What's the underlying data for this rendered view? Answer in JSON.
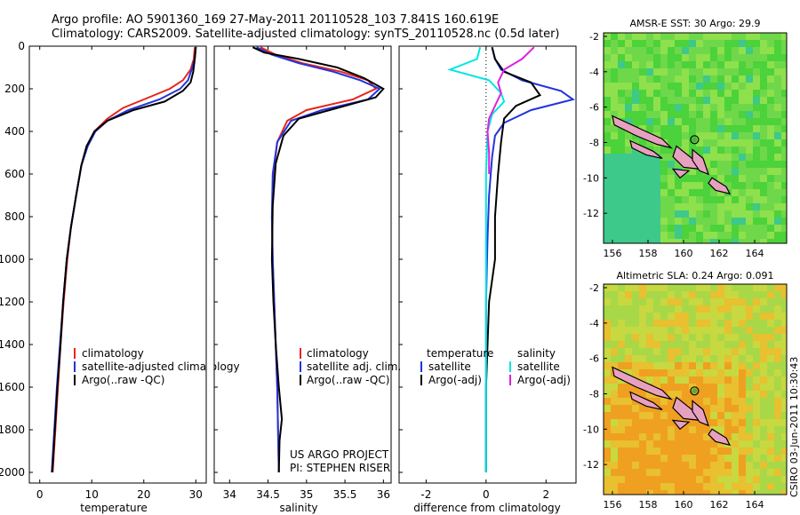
{
  "header": {
    "line1": "Argo profile: AO 5901360_169 27-May-2011 20110528_103 7.841S 160.619E",
    "line2": "Climatology: CARS2009. Satellite-adjusted climatology: synTS_20110528.nc (0.5d later)"
  },
  "footer_credit": "CSIRO 03-Jun-2011 10:30:43",
  "project_text": [
    "US ARGO PROJECT",
    "PI: STEPHEN RISER"
  ],
  "colors": {
    "climatology": "#e8241a",
    "satellite": "#2233dd",
    "argo": "#000000",
    "satellite_sal": "#00e5e5",
    "argo_sal": "#e020e0"
  },
  "chart_data": [
    {
      "type": "line",
      "id": "temperature",
      "xlabel": "temperature",
      "ylabel": "",
      "xlim": [
        -2,
        32
      ],
      "ylim": [
        2050,
        0
      ],
      "xticks": [
        0,
        10,
        20,
        30
      ],
      "yticks": [
        0,
        200,
        400,
        600,
        800,
        1000,
        1200,
        1400,
        1600,
        1800,
        2000
      ],
      "legend": [
        "climatology",
        "satellite-adjusted climatology",
        "Argo(..raw -QC)"
      ],
      "legend_position": "lower-right",
      "series": [
        {
          "name": "climatology",
          "color": "#e8241a",
          "points": [
            [
              29.8,
              5
            ],
            [
              29.6,
              60
            ],
            [
              29.0,
              110
            ],
            [
              27.5,
              160
            ],
            [
              25,
              200
            ],
            [
              20,
              250
            ],
            [
              16,
              290
            ],
            [
              13,
              340
            ],
            [
              10.5,
              400
            ],
            [
              9,
              470
            ],
            [
              8,
              560
            ],
            [
              7,
              700
            ],
            [
              6,
              850
            ],
            [
              5.3,
              1000
            ],
            [
              4.6,
              1200
            ],
            [
              4,
              1400
            ],
            [
              3.5,
              1600
            ],
            [
              3,
              1800
            ],
            [
              2.5,
              2000
            ]
          ]
        },
        {
          "name": "satellite-adjusted climatology",
          "color": "#2233dd",
          "points": [
            [
              30,
              5
            ],
            [
              29.8,
              60
            ],
            [
              29.2,
              110
            ],
            [
              28.5,
              160
            ],
            [
              27,
              200
            ],
            [
              23,
              250
            ],
            [
              17,
              300
            ],
            [
              13,
              350
            ],
            [
              10.7,
              400
            ],
            [
              9.2,
              470
            ],
            [
              8,
              560
            ],
            [
              7,
              700
            ],
            [
              6,
              850
            ],
            [
              5.2,
              1000
            ],
            [
              4.5,
              1200
            ],
            [
              3.9,
              1400
            ],
            [
              3.3,
              1600
            ],
            [
              2.8,
              1800
            ],
            [
              2.3,
              2000
            ]
          ]
        },
        {
          "name": "Argo(..raw -QC)",
          "color": "#000000",
          "points": [
            [
              30,
              5
            ],
            [
              29.8,
              60
            ],
            [
              29.5,
              120
            ],
            [
              29,
              170
            ],
            [
              27.5,
              210
            ],
            [
              24,
              260
            ],
            [
              18,
              300
            ],
            [
              13,
              350
            ],
            [
              10.5,
              400
            ],
            [
              9,
              470
            ],
            [
              8,
              560
            ],
            [
              7,
              700
            ],
            [
              6,
              850
            ],
            [
              5.2,
              1000
            ],
            [
              4.5,
              1200
            ],
            [
              4,
              1400
            ],
            [
              3.4,
              1600
            ],
            [
              2.9,
              1800
            ],
            [
              2.4,
              2000
            ]
          ]
        }
      ]
    },
    {
      "type": "line",
      "id": "salinity",
      "xlabel": "salinity",
      "xlim": [
        33.8,
        36.1
      ],
      "ylim": [
        2050,
        0
      ],
      "xticks": [
        34,
        34.5,
        35,
        35.5,
        36
      ],
      "legend": [
        "climatology",
        "satellite adj. clim.",
        "Argo(..raw -QC)"
      ],
      "legend_position": "lower-right",
      "series": [
        {
          "name": "climatology",
          "color": "#e8241a",
          "points": [
            [
              34.4,
              5
            ],
            [
              34.6,
              40
            ],
            [
              34.95,
              80
            ],
            [
              35.45,
              120
            ],
            [
              35.8,
              160
            ],
            [
              35.9,
              200
            ],
            [
              35.6,
              250
            ],
            [
              35.0,
              300
            ],
            [
              34.75,
              350
            ],
            [
              34.62,
              450
            ],
            [
              34.57,
              600
            ],
            [
              34.55,
              800
            ],
            [
              34.56,
              1000
            ],
            [
              34.58,
              1200
            ],
            [
              34.6,
              1400
            ],
            [
              34.62,
              1600
            ],
            [
              34.63,
              1800
            ],
            [
              34.64,
              2000
            ]
          ]
        },
        {
          "name": "satellite adj. clim.",
          "color": "#2233dd",
          "points": [
            [
              34.35,
              5
            ],
            [
              34.55,
              40
            ],
            [
              34.9,
              80
            ],
            [
              35.35,
              120
            ],
            [
              35.7,
              160
            ],
            [
              35.95,
              200
            ],
            [
              35.8,
              250
            ],
            [
              35.2,
              300
            ],
            [
              34.8,
              350
            ],
            [
              34.62,
              450
            ],
            [
              34.56,
              600
            ],
            [
              34.55,
              800
            ],
            [
              34.56,
              1000
            ],
            [
              34.58,
              1200
            ],
            [
              34.6,
              1400
            ],
            [
              34.62,
              1600
            ],
            [
              34.63,
              1800
            ],
            [
              34.64,
              2000
            ]
          ]
        },
        {
          "name": "Argo(..raw -QC)",
          "color": "#000000",
          "points": [
            [
              34.3,
              5
            ],
            [
              34.45,
              30
            ],
            [
              34.9,
              60
            ],
            [
              35.4,
              100
            ],
            [
              35.75,
              150
            ],
            [
              36.0,
              200
            ],
            [
              35.9,
              240
            ],
            [
              35.4,
              290
            ],
            [
              34.9,
              340
            ],
            [
              34.7,
              420
            ],
            [
              34.6,
              550
            ],
            [
              34.56,
              750
            ],
            [
              34.55,
              1000
            ],
            [
              34.57,
              1200
            ],
            [
              34.6,
              1400
            ],
            [
              34.64,
              1600
            ],
            [
              34.68,
              1750
            ],
            [
              34.65,
              1850
            ],
            [
              34.64,
              2000
            ]
          ]
        }
      ]
    },
    {
      "type": "line",
      "id": "difference",
      "xlabel": "difference from climatology",
      "xlim": [
        -2.9,
        3.0
      ],
      "ylim": [
        2050,
        0
      ],
      "xticks": [
        -2,
        0,
        2
      ],
      "legend": [
        "temperature",
        "satellite",
        "Argo(-adj)",
        "salinity",
        "satellite",
        "Argo(-adj)"
      ],
      "legend_position": "lower",
      "series": [
        {
          "name": "temperature satellite",
          "color": "#2233dd",
          "points": [
            [
              0.2,
              5
            ],
            [
              0.3,
              60
            ],
            [
              0.5,
              110
            ],
            [
              1.2,
              160
            ],
            [
              2.5,
              210
            ],
            [
              2.9,
              250
            ],
            [
              1.5,
              300
            ],
            [
              0.6,
              360
            ],
            [
              0.3,
              420
            ],
            [
              0.2,
              520
            ],
            [
              0.1,
              700
            ],
            [
              0.05,
              900
            ],
            [
              0.0,
              1200
            ],
            [
              0,
              1600
            ],
            [
              0,
              2000
            ]
          ]
        },
        {
          "name": "temperature Argo(-adj)",
          "color": "#000000",
          "points": [
            [
              0.2,
              5
            ],
            [
              0.3,
              60
            ],
            [
              0.6,
              120
            ],
            [
              1.5,
              170
            ],
            [
              1.8,
              230
            ],
            [
              1.0,
              280
            ],
            [
              0.6,
              340
            ],
            [
              0.5,
              450
            ],
            [
              0.4,
              600
            ],
            [
              0.3,
              800
            ],
            [
              0.3,
              1000
            ],
            [
              0.1,
              1200
            ],
            [
              0,
              1600
            ],
            [
              0,
              2000
            ]
          ]
        },
        {
          "name": "salinity satellite",
          "color": "#00e5e5",
          "points": [
            [
              -0.2,
              5
            ],
            [
              -0.3,
              60
            ],
            [
              -1.2,
              110
            ],
            [
              0.1,
              160
            ],
            [
              0.5,
              220
            ],
            [
              0.6,
              260
            ],
            [
              0.2,
              320
            ],
            [
              0.05,
              400
            ],
            [
              0.0,
              600
            ],
            [
              0,
              1000
            ],
            [
              0,
              1500
            ],
            [
              0,
              2000
            ]
          ]
        },
        {
          "name": "salinity Argo(-adj)",
          "color": "#e020e0",
          "points": [
            [
              1.6,
              5
            ],
            [
              1.2,
              60
            ],
            [
              0.6,
              110
            ],
            [
              0.4,
              170
            ],
            [
              0.5,
              220
            ],
            [
              0.3,
              280
            ],
            [
              0.1,
              340
            ],
            [
              0.05,
              400
            ],
            [
              0.1,
              500
            ],
            [
              0.1,
              600
            ]
          ]
        }
      ]
    },
    {
      "type": "heatmap",
      "id": "sst_map",
      "title": "AMSR-E SST: 30 Argo: 29.9",
      "xlim": [
        155.5,
        165.8
      ],
      "ylim": [
        -13.7,
        -1.8
      ],
      "xticks": [
        156,
        158,
        160,
        162,
        164
      ],
      "yticks": [
        -2,
        -4,
        -6,
        -8,
        -10,
        -12
      ],
      "marker": {
        "lon": 160.619,
        "lat": -7.841
      }
    },
    {
      "type": "heatmap",
      "id": "sla_map",
      "title": "Altimetric SLA: 0.24 Argo: 0.091",
      "xlim": [
        155.5,
        165.8
      ],
      "ylim": [
        -13.7,
        -1.8
      ],
      "xticks": [
        156,
        158,
        160,
        162,
        164
      ],
      "yticks": [
        -2,
        -4,
        -6,
        -8,
        -10,
        -12
      ],
      "marker": {
        "lon": 160.619,
        "lat": -7.841
      }
    }
  ]
}
